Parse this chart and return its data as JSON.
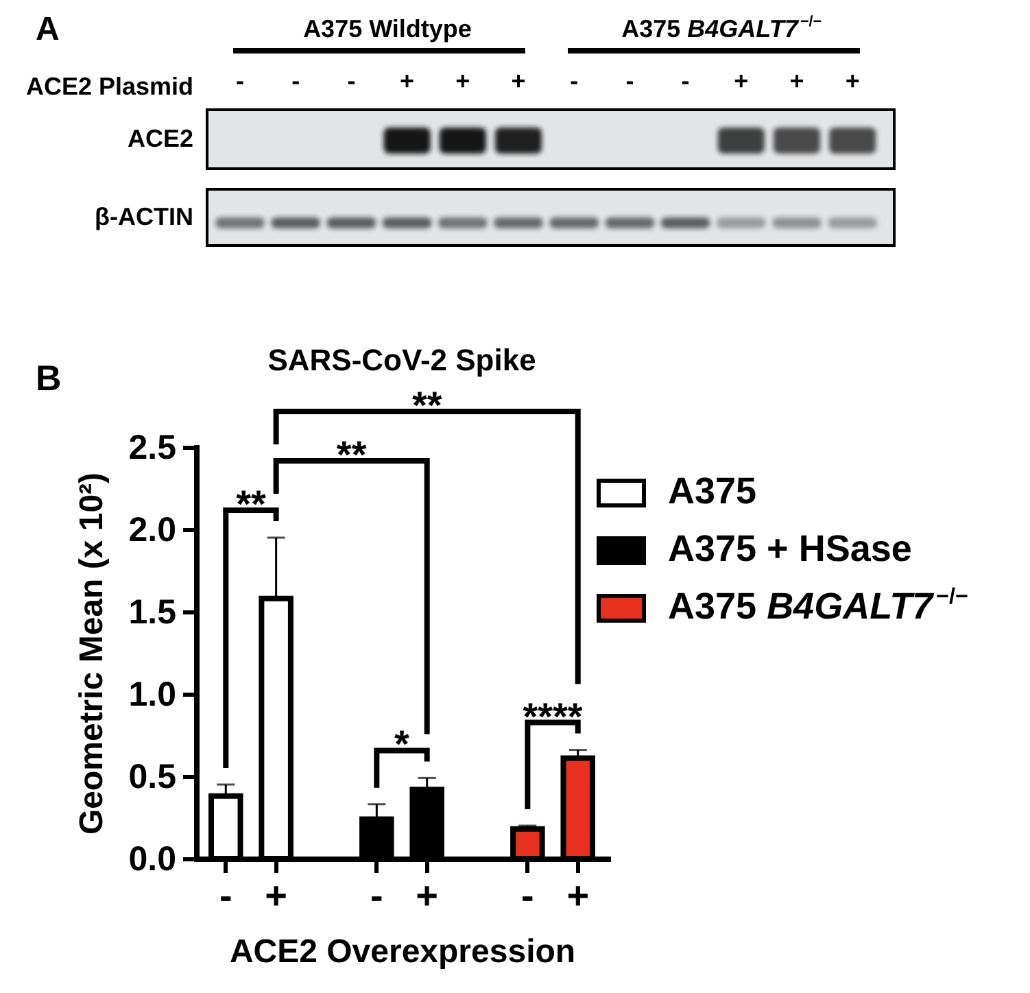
{
  "chart_data": [
    {
      "type": "other",
      "xlabel": "ACE2 Plasmid",
      "categories": [
        "-",
        "-",
        "-",
        "+",
        "+",
        "+",
        "-",
        "-",
        "-",
        "+",
        "+",
        "+"
      ],
      "y_categories": [
        "ACE2",
        "β-ACTIN"
      ],
      "annotations": [
        "A",
        "A375 Wildtype",
        "A375 B4GALT7$^{−/−}$"
      ]
    },
    {
      "type": "bar",
      "title": "SARS-CoV-2 Spike",
      "xlabel": "ACE2 Overexpression",
      "ylabel": "Geometric Mean (x 10²)",
      "categories": [
        "-",
        "+",
        null,
        "-",
        "+",
        null,
        "-",
        "+"
      ],
      "series": [
        {
          "name": "A375",
          "color": "#ffffff",
          "values": [
            0.38,
            1.58,
            null,
            null,
            null,
            null,
            null,
            null
          ],
          "errors": [
            [
              0.38,
              0.45
            ],
            [
              1.58,
              1.95
            ],
            null,
            null,
            null,
            null,
            null,
            null
          ]
        },
        {
          "name": "A375 + HSase",
          "color": "#000000",
          "values": [
            null,
            null,
            null,
            0.24,
            0.42,
            null,
            null,
            null
          ],
          "errors": [
            null,
            null,
            null,
            [
              0.24,
              0.33
            ],
            [
              0.42,
              0.49
            ],
            null,
            null,
            null
          ]
        },
        {
          "name": "A375 B4GALT7$^{−/−}$",
          "color": "#e8301e",
          "values": [
            null,
            null,
            null,
            null,
            null,
            null,
            0.18,
            0.61
          ],
          "errors": [
            null,
            null,
            null,
            null,
            null,
            null,
            [
              0.18,
              0.2
            ],
            [
              0.61,
              0.66
            ]
          ]
        }
      ],
      "ylim": [
        0,
        2.5
      ],
      "yticks": [
        {
          "value": 0,
          "label": "0.0"
        },
        0.5,
        {
          "value": 1,
          "label": "1.0"
        },
        1.5,
        {
          "value": 2,
          "label": "2.0"
        },
        2.5
      ],
      "legend": "right",
      "annotations": [
        "B",
        "**",
        "*",
        "****",
        "**",
        "**"
      ]
    }
  ]
}
